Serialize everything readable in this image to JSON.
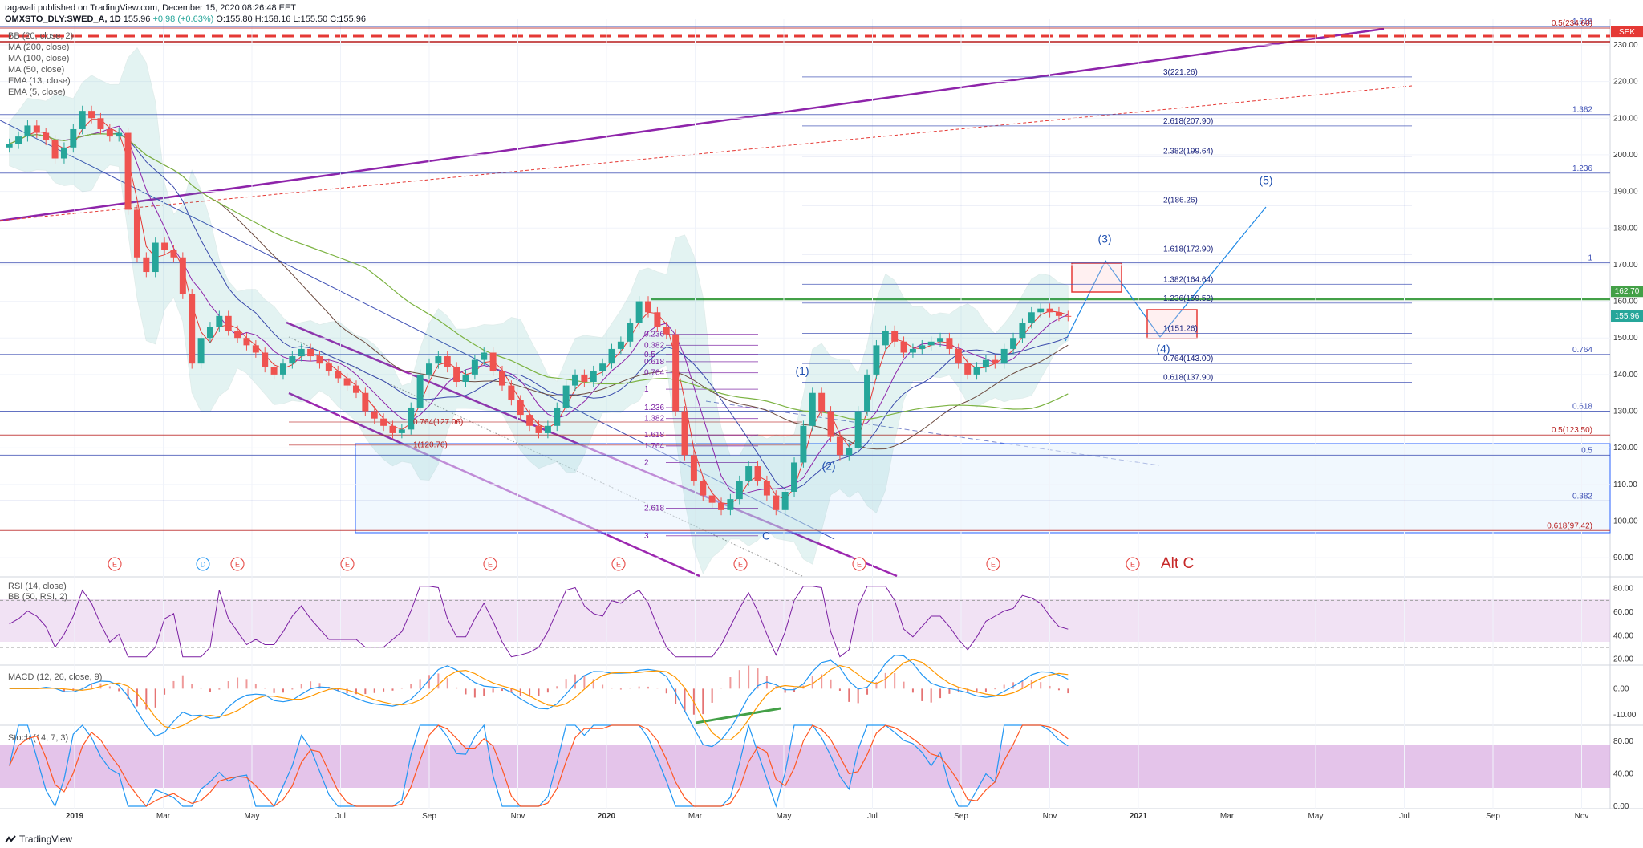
{
  "header": {
    "publisher_line": "tagavali published on TradingView.com, December 15, 2020 08:26:48 EET",
    "symbol": "OMXSTO_DLY:SWED_A, 1D",
    "last": "155.96",
    "change": "+0.98 (+0.63%)",
    "o": "O:155.80",
    "h": "H:158.16",
    "l": "L:155.50",
    "c": "C:155.96"
  },
  "indicators": [
    "BB (20, close, 2)",
    "MA (200, close)",
    "MA (100, close)",
    "MA (50, close)",
    "EMA (13, close)",
    "EMA (5, close)"
  ],
  "rsi_label": "RSI (14, close)",
  "rsi_bb_label": "BB (50, RSI, 2)",
  "macd_label": "MACD (12, 26, close, 9)",
  "stoch_label": "Stoch (14, 7, 3)",
  "footer": {
    "brand": "TradingView"
  },
  "colors": {
    "up": "#26a69a",
    "down": "#ef5350",
    "purple": "#9c27b0",
    "blue": "#2962ff",
    "red": "#d32f2f",
    "green": "#4caf50",
    "orange": "#ff9800"
  },
  "chart_data": [
    {
      "type": "candlestick",
      "title": "OMXSTO_DLY:SWED_A, 1D",
      "currency": "SEK",
      "x_ticks": [
        "2019",
        "Mar",
        "May",
        "Jul",
        "Sep",
        "Nov",
        "2020",
        "Mar",
        "May",
        "Jul",
        "Sep",
        "Nov",
        "2021",
        "Mar",
        "May",
        "Jul",
        "Sep",
        "Nov"
      ],
      "y_ticks": [
        90,
        100,
        110,
        120,
        130,
        140,
        150,
        160,
        170,
        180,
        190,
        200,
        210,
        220,
        230
      ],
      "ylim": [
        85,
        237
      ],
      "price_labels": {
        "last": "155.96",
        "level": "162.70",
        "currency": "SEK"
      },
      "close_series": [
        203,
        205,
        208,
        206,
        204,
        199,
        202,
        207,
        212,
        210,
        207,
        205,
        206,
        185,
        172,
        168,
        176,
        174,
        172,
        162,
        143,
        150,
        153,
        156,
        152,
        150,
        148,
        146,
        142,
        140,
        143,
        145,
        147,
        145,
        143,
        141,
        139,
        137,
        135,
        130,
        128,
        126,
        124,
        125,
        131,
        140,
        143,
        145,
        142,
        138,
        140,
        144,
        146,
        141,
        137,
        133,
        129,
        126,
        124,
        126,
        131,
        137,
        140,
        138,
        141,
        143,
        147,
        149,
        154,
        160,
        157,
        153,
        151,
        130,
        118,
        111,
        107,
        105,
        103,
        106,
        111,
        115,
        111,
        107,
        103,
        108,
        116,
        126,
        135,
        130,
        123,
        118,
        120,
        130,
        140,
        148,
        152,
        149,
        146,
        147,
        148,
        149,
        150,
        147,
        143,
        140,
        142,
        144,
        143,
        147,
        150,
        154,
        157,
        158,
        157,
        156,
        155.96
      ],
      "fib_right": [
        {
          "label": "1.618",
          "value": 235
        },
        {
          "label": "0.5(234.60)",
          "value": 234.6
        },
        {
          "label": "1.382",
          "value": 211
        },
        {
          "label": "1.236",
          "value": 195
        },
        {
          "label": "1",
          "value": 170.5
        },
        {
          "label": "0.764",
          "value": 145.5
        },
        {
          "label": "0.618",
          "value": 130
        },
        {
          "label": "0.5(123.50)",
          "value": 123.5
        },
        {
          "label": "0.5",
          "value": 118
        },
        {
          "label": "0.382",
          "value": 105.5
        },
        {
          "label": "0.618(97.42)",
          "value": 97.42
        }
      ],
      "fib_mid": [
        {
          "label": "3(221.26)",
          "value": 221.26
        },
        {
          "label": "2.618(207.90)",
          "value": 207.9
        },
        {
          "label": "2.382(199.64)",
          "value": 199.64
        },
        {
          "label": "2(186.26)",
          "value": 186.26
        },
        {
          "label": "1.618(172.90)",
          "value": 172.9
        },
        {
          "label": "1.382(164.64)",
          "value": 164.64
        },
        {
          "label": "1.236(159.52)",
          "value": 159.52
        },
        {
          "label": "1(151.26)",
          "value": 151.26
        },
        {
          "label": "0.764(143.00)",
          "value": 143.0
        },
        {
          "label": "0.618(137.90)",
          "value": 137.9
        }
      ],
      "fib_left": [
        {
          "label": "0.764(127.06)",
          "value": 127.06
        },
        {
          "label": "1(120.76)",
          "value": 120.76
        }
      ],
      "fib_retrace": [
        {
          "label": "0.236",
          "value": 151
        },
        {
          "label": "0.382",
          "value": 148
        },
        {
          "label": "0.5",
          "value": 145.5
        },
        {
          "label": "0.618",
          "value": 143.5
        },
        {
          "label": "0.764",
          "value": 140.5
        },
        {
          "label": "1",
          "value": 136
        },
        {
          "label": "1.236",
          "value": 131
        },
        {
          "label": "1.382",
          "value": 128
        },
        {
          "label": "1.618",
          "value": 123.5
        },
        {
          "label": "1.764",
          "value": 120.5
        },
        {
          "label": "2",
          "value": 116
        },
        {
          "label": "2.618",
          "value": 103.5
        },
        {
          "label": "3",
          "value": 96
        }
      ],
      "wave_labels": [
        {
          "label": "(1)",
          "value": 140
        },
        {
          "label": "(2)",
          "value": 114
        },
        {
          "label": "(3)",
          "value": 176
        },
        {
          "label": "(4)",
          "value": 146
        },
        {
          "label": "(5)",
          "value": 192
        },
        {
          "label": "C",
          "value": 95
        }
      ],
      "events": [
        "E",
        "D",
        "E",
        "E",
        "E",
        "E",
        "E",
        "E",
        "E",
        "E"
      ],
      "annotation": "Alt C"
    },
    {
      "type": "line",
      "title": "RSI (14, close)",
      "y_ticks": [
        20,
        40,
        60,
        80
      ],
      "ylim": [
        15,
        90
      ],
      "bands": [
        30,
        70
      ]
    },
    {
      "type": "line",
      "title": "MACD (12, 26, close, 9)",
      "y_ticks": [
        "0.00",
        "-10.00"
      ],
      "ylim": [
        -14,
        9
      ]
    },
    {
      "type": "line",
      "title": "Stoch (14, 7, 3)",
      "y_ticks": [
        "0.00",
        "40.00",
        "80.00"
      ],
      "ylim": [
        -3,
        100
      ]
    }
  ]
}
